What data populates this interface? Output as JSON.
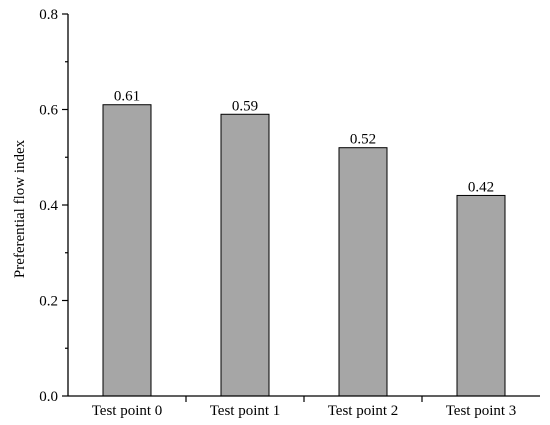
{
  "chart_data": {
    "type": "bar",
    "categories": [
      "Test point 0",
      "Test point 1",
      "Test point 2",
      "Test point 3"
    ],
    "values": [
      0.61,
      0.59,
      0.52,
      0.42
    ],
    "data_labels": [
      "0.61",
      "0.59",
      "0.52",
      "0.42"
    ],
    "title": "",
    "xlabel": "",
    "ylabel": "Preferential flow index",
    "ylim": [
      0,
      0.8
    ],
    "yticks": [
      "0.0",
      "0.2",
      "0.4",
      "0.6",
      "0.8"
    ],
    "grid": false,
    "bar_color": "#a6a6a6"
  }
}
